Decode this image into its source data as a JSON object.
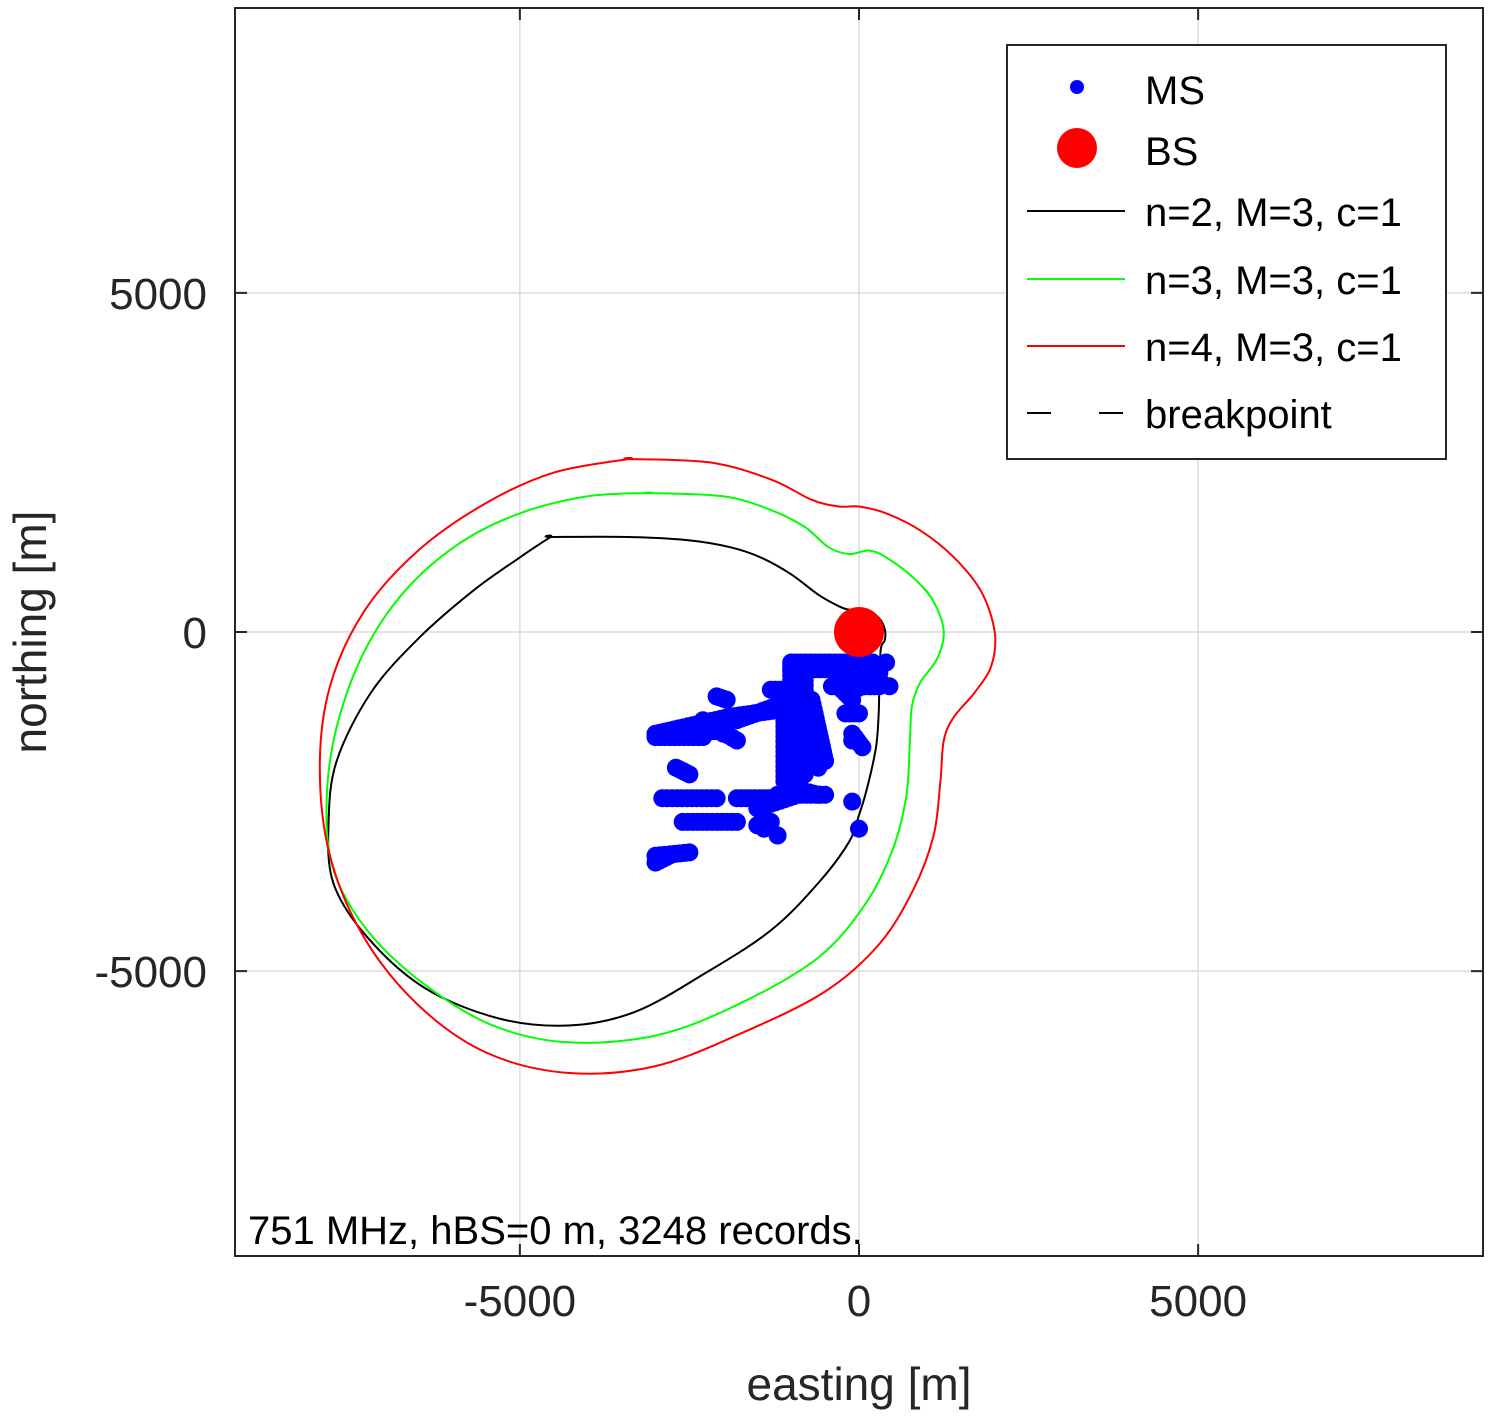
{
  "chart_data": {
    "type": "scatter",
    "title": "",
    "xlabel": "easting [m]",
    "ylabel": "northing [m]",
    "xlim": [
      -9200,
      9200
    ],
    "ylim": [
      -9200,
      9200
    ],
    "x_ticks": [
      -5000,
      0,
      5000
    ],
    "y_ticks": [
      -5000,
      0,
      5000
    ],
    "x_tick_labels": [
      "-5000",
      "0",
      "5000"
    ],
    "y_tick_labels": [
      "-5000",
      "0",
      "5000"
    ],
    "grid": true,
    "legend_position": "top-right",
    "annotation": "751 MHz, hBS=0 m, 3248 records.",
    "legend": [
      {
        "label": "MS",
        "kind": "marker-small",
        "color": "#0000ff"
      },
      {
        "label": "BS",
        "kind": "marker-large",
        "color": "#ff0000"
      },
      {
        "label": "n=2, M=3, c=1",
        "kind": "line",
        "color": "#000000"
      },
      {
        "label": "n=3, M=3, c=1",
        "kind": "line",
        "color": "#00ff00"
      },
      {
        "label": "n=4, M=3, c=1",
        "kind": "line",
        "color": "#ff0000"
      },
      {
        "label": "breakpoint",
        "kind": "dash",
        "color": "#000000"
      }
    ],
    "bs": {
      "name": "BS",
      "x": 0,
      "y": 0,
      "color": "#ff0000"
    },
    "ms_color": "#0000ff",
    "ms_segments": [
      [
        -3000,
        -1500,
        -1900,
        -1250
      ],
      [
        -1900,
        -1250,
        -1200,
        -1150
      ],
      [
        -2100,
        -950,
        -1950,
        -1000
      ],
      [
        -2300,
        -1300,
        -1800,
        -1600
      ],
      [
        -3000,
        -1550,
        -2300,
        -1550
      ],
      [
        -2600,
        -1500,
        -2000,
        -1450
      ],
      [
        -1800,
        -1300,
        -1100,
        -1050
      ],
      [
        -1300,
        -850,
        -1100,
        -850
      ],
      [
        -1100,
        -1100,
        -1100,
        -2200
      ],
      [
        -1000,
        -500,
        -1000,
        -2200
      ],
      [
        -900,
        -500,
        -900,
        -2100
      ],
      [
        -800,
        -500,
        -800,
        -2100
      ],
      [
        -1000,
        -450,
        200,
        -450
      ],
      [
        -1000,
        -550,
        200,
        -550
      ],
      [
        -700,
        -1000,
        -500,
        -1900
      ],
      [
        -300,
        -800,
        -100,
        -1000
      ],
      [
        -400,
        -800,
        300,
        -800
      ],
      [
        -200,
        -900,
        300,
        -700
      ],
      [
        -200,
        -1200,
        0,
        -1200
      ],
      [
        -100,
        -1500,
        50,
        -1700
      ],
      [
        -2700,
        -2000,
        -2500,
        -2100
      ],
      [
        -2900,
        -2450,
        -2100,
        -2450
      ],
      [
        -1800,
        -2450,
        -1200,
        -2450
      ],
      [
        -1500,
        -2600,
        -900,
        -2400
      ],
      [
        -1200,
        -2400,
        -500,
        -2400
      ],
      [
        -2600,
        -2800,
        -1800,
        -2800
      ],
      [
        -1500,
        -2850,
        -1300,
        -2800
      ],
      [
        -3000,
        -3300,
        -2500,
        -3250
      ],
      [
        -3000,
        -3400,
        -2800,
        -3300
      ],
      [
        -1000,
        -2300,
        -600,
        -2400
      ],
      [
        -800,
        -1800,
        -600,
        -1900
      ]
    ],
    "ms_points": [
      {
        "x": -100,
        "y": -2500
      },
      {
        "x": 0,
        "y": -2900
      },
      {
        "x": 400,
        "y": -450
      },
      {
        "x": 450,
        "y": -800
      },
      {
        "x": -1200,
        "y": -3000
      },
      {
        "x": -1400,
        "y": -2900
      },
      {
        "x": -2000,
        "y": -1500
      },
      {
        "x": -600,
        "y": -2000
      },
      {
        "x": 300,
        "y": -600
      },
      {
        "x": -100,
        "y": -1600
      }
    ],
    "series": [
      {
        "name": "n=2, M=3, c=1",
        "color": "#000000",
        "x": [
          -4550,
          -3400,
          -2500,
          -1900,
          -1450,
          -1000,
          -600,
          -300,
          -150,
          0,
          150,
          300,
          380,
          380,
          320,
          300,
          290,
          250,
          120,
          0,
          -150,
          -600,
          -1300,
          -2300,
          -3300,
          -4250,
          -5300,
          -6400,
          -7250,
          -7750,
          -7820,
          -7700,
          -7200,
          -6500,
          -5700,
          -5000,
          -4550
        ],
        "y": [
          1400,
          1400,
          1350,
          1250,
          1100,
          850,
          550,
          380,
          330,
          330,
          310,
          200,
          40,
          -120,
          -260,
          -800,
          -1200,
          -1700,
          -2300,
          -2700,
          -3100,
          -3700,
          -4400,
          -5050,
          -5600,
          -5800,
          -5700,
          -5250,
          -4500,
          -3700,
          -2800,
          -1900,
          -900,
          -100,
          600,
          1100,
          1400
        ]
      },
      {
        "name": "n=3, M=3, c=1",
        "color": "#00ff00",
        "x": [
          -3100,
          -2000,
          -1300,
          -800,
          -450,
          -150,
          150,
          400,
          800,
          1100,
          1250,
          1150,
          900,
          780,
          750,
          700,
          500,
          100,
          -600,
          -1800,
          -3000,
          -4300,
          -5400,
          -6400,
          -7250,
          -7750,
          -7850,
          -7700,
          -7300,
          -6700,
          -5900,
          -5000,
          -4000,
          -3100
        ],
        "y": [
          2050,
          2000,
          1800,
          1550,
          1250,
          1150,
          1200,
          1100,
          800,
          450,
          0,
          -400,
          -750,
          -1100,
          -1600,
          -2400,
          -3200,
          -4000,
          -4800,
          -5500,
          -5950,
          -6050,
          -5800,
          -5200,
          -4400,
          -3500,
          -2500,
          -1400,
          -300,
          600,
          1300,
          1750,
          2000,
          2050
        ]
      },
      {
        "name": "n=4, M=3, c=1",
        "color": "#ff0000",
        "x": [
          -3400,
          -2200,
          -1300,
          -700,
          -300,
          0,
          400,
          900,
          1400,
          1800,
          2000,
          1950,
          1700,
          1400,
          1250,
          1200,
          1100,
          800,
          300,
          -500,
          -1700,
          -3000,
          -4300,
          -5500,
          -6500,
          -7300,
          -7800,
          -7950,
          -7800,
          -7300,
          -6500,
          -5500,
          -4500,
          -3400
        ],
        "y": [
          2550,
          2500,
          2250,
          1950,
          1850,
          1850,
          1750,
          1500,
          1100,
          600,
          0,
          -500,
          -900,
          -1250,
          -1600,
          -2200,
          -3000,
          -3800,
          -4600,
          -5300,
          -5900,
          -6400,
          -6500,
          -6200,
          -5500,
          -4500,
          -3300,
          -2000,
          -800,
          300,
          1200,
          1900,
          2350,
          2550
        ]
      }
    ]
  }
}
